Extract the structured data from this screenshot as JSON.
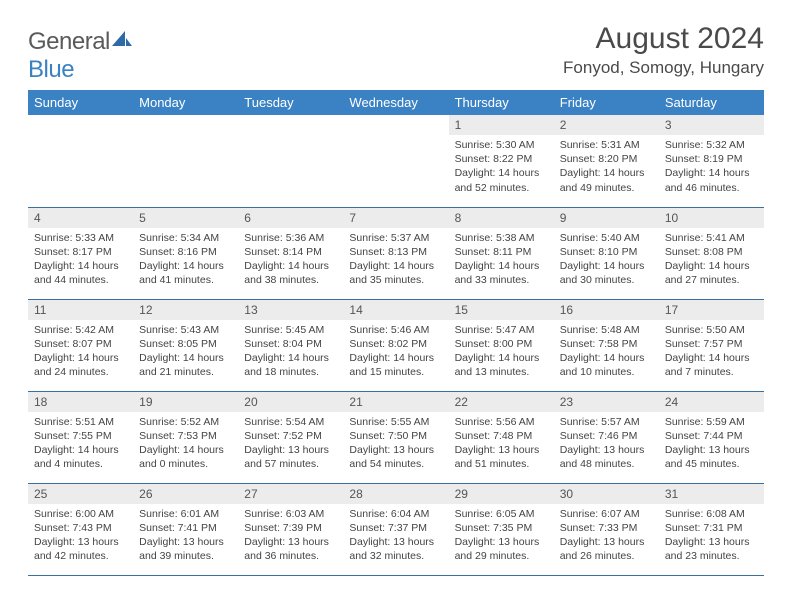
{
  "brand": {
    "part1": "General",
    "part2": "Blue"
  },
  "title": "August 2024",
  "location": "Fonyod, Somogy, Hungary",
  "colors": {
    "header_bg": "#3b82c4",
    "header_fg": "#ffffff",
    "daynum_bg": "#ececec",
    "row_border": "#3b6fa0",
    "text": "#444444",
    "title_color": "#4a4a4a"
  },
  "typography": {
    "month_title_size": 30,
    "location_size": 17,
    "weekday_size": 13,
    "daynum_size": 12,
    "info_size": 10.5
  },
  "weekdays": [
    "Sunday",
    "Monday",
    "Tuesday",
    "Wednesday",
    "Thursday",
    "Friday",
    "Saturday"
  ],
  "weeks": [
    [
      {
        "n": "",
        "sr": "",
        "ss": "",
        "dl": "",
        "empty": true
      },
      {
        "n": "",
        "sr": "",
        "ss": "",
        "dl": "",
        "empty": true
      },
      {
        "n": "",
        "sr": "",
        "ss": "",
        "dl": "",
        "empty": true
      },
      {
        "n": "",
        "sr": "",
        "ss": "",
        "dl": "",
        "empty": true
      },
      {
        "n": "1",
        "sr": "Sunrise: 5:30 AM",
        "ss": "Sunset: 8:22 PM",
        "dl": "Daylight: 14 hours and 52 minutes."
      },
      {
        "n": "2",
        "sr": "Sunrise: 5:31 AM",
        "ss": "Sunset: 8:20 PM",
        "dl": "Daylight: 14 hours and 49 minutes."
      },
      {
        "n": "3",
        "sr": "Sunrise: 5:32 AM",
        "ss": "Sunset: 8:19 PM",
        "dl": "Daylight: 14 hours and 46 minutes."
      }
    ],
    [
      {
        "n": "4",
        "sr": "Sunrise: 5:33 AM",
        "ss": "Sunset: 8:17 PM",
        "dl": "Daylight: 14 hours and 44 minutes."
      },
      {
        "n": "5",
        "sr": "Sunrise: 5:34 AM",
        "ss": "Sunset: 8:16 PM",
        "dl": "Daylight: 14 hours and 41 minutes."
      },
      {
        "n": "6",
        "sr": "Sunrise: 5:36 AM",
        "ss": "Sunset: 8:14 PM",
        "dl": "Daylight: 14 hours and 38 minutes."
      },
      {
        "n": "7",
        "sr": "Sunrise: 5:37 AM",
        "ss": "Sunset: 8:13 PM",
        "dl": "Daylight: 14 hours and 35 minutes."
      },
      {
        "n": "8",
        "sr": "Sunrise: 5:38 AM",
        "ss": "Sunset: 8:11 PM",
        "dl": "Daylight: 14 hours and 33 minutes."
      },
      {
        "n": "9",
        "sr": "Sunrise: 5:40 AM",
        "ss": "Sunset: 8:10 PM",
        "dl": "Daylight: 14 hours and 30 minutes."
      },
      {
        "n": "10",
        "sr": "Sunrise: 5:41 AM",
        "ss": "Sunset: 8:08 PM",
        "dl": "Daylight: 14 hours and 27 minutes."
      }
    ],
    [
      {
        "n": "11",
        "sr": "Sunrise: 5:42 AM",
        "ss": "Sunset: 8:07 PM",
        "dl": "Daylight: 14 hours and 24 minutes."
      },
      {
        "n": "12",
        "sr": "Sunrise: 5:43 AM",
        "ss": "Sunset: 8:05 PM",
        "dl": "Daylight: 14 hours and 21 minutes."
      },
      {
        "n": "13",
        "sr": "Sunrise: 5:45 AM",
        "ss": "Sunset: 8:04 PM",
        "dl": "Daylight: 14 hours and 18 minutes."
      },
      {
        "n": "14",
        "sr": "Sunrise: 5:46 AM",
        "ss": "Sunset: 8:02 PM",
        "dl": "Daylight: 14 hours and 15 minutes."
      },
      {
        "n": "15",
        "sr": "Sunrise: 5:47 AM",
        "ss": "Sunset: 8:00 PM",
        "dl": "Daylight: 14 hours and 13 minutes."
      },
      {
        "n": "16",
        "sr": "Sunrise: 5:48 AM",
        "ss": "Sunset: 7:58 PM",
        "dl": "Daylight: 14 hours and 10 minutes."
      },
      {
        "n": "17",
        "sr": "Sunrise: 5:50 AM",
        "ss": "Sunset: 7:57 PM",
        "dl": "Daylight: 14 hours and 7 minutes."
      }
    ],
    [
      {
        "n": "18",
        "sr": "Sunrise: 5:51 AM",
        "ss": "Sunset: 7:55 PM",
        "dl": "Daylight: 14 hours and 4 minutes."
      },
      {
        "n": "19",
        "sr": "Sunrise: 5:52 AM",
        "ss": "Sunset: 7:53 PM",
        "dl": "Daylight: 14 hours and 0 minutes."
      },
      {
        "n": "20",
        "sr": "Sunrise: 5:54 AM",
        "ss": "Sunset: 7:52 PM",
        "dl": "Daylight: 13 hours and 57 minutes."
      },
      {
        "n": "21",
        "sr": "Sunrise: 5:55 AM",
        "ss": "Sunset: 7:50 PM",
        "dl": "Daylight: 13 hours and 54 minutes."
      },
      {
        "n": "22",
        "sr": "Sunrise: 5:56 AM",
        "ss": "Sunset: 7:48 PM",
        "dl": "Daylight: 13 hours and 51 minutes."
      },
      {
        "n": "23",
        "sr": "Sunrise: 5:57 AM",
        "ss": "Sunset: 7:46 PM",
        "dl": "Daylight: 13 hours and 48 minutes."
      },
      {
        "n": "24",
        "sr": "Sunrise: 5:59 AM",
        "ss": "Sunset: 7:44 PM",
        "dl": "Daylight: 13 hours and 45 minutes."
      }
    ],
    [
      {
        "n": "25",
        "sr": "Sunrise: 6:00 AM",
        "ss": "Sunset: 7:43 PM",
        "dl": "Daylight: 13 hours and 42 minutes."
      },
      {
        "n": "26",
        "sr": "Sunrise: 6:01 AM",
        "ss": "Sunset: 7:41 PM",
        "dl": "Daylight: 13 hours and 39 minutes."
      },
      {
        "n": "27",
        "sr": "Sunrise: 6:03 AM",
        "ss": "Sunset: 7:39 PM",
        "dl": "Daylight: 13 hours and 36 minutes."
      },
      {
        "n": "28",
        "sr": "Sunrise: 6:04 AM",
        "ss": "Sunset: 7:37 PM",
        "dl": "Daylight: 13 hours and 32 minutes."
      },
      {
        "n": "29",
        "sr": "Sunrise: 6:05 AM",
        "ss": "Sunset: 7:35 PM",
        "dl": "Daylight: 13 hours and 29 minutes."
      },
      {
        "n": "30",
        "sr": "Sunrise: 6:07 AM",
        "ss": "Sunset: 7:33 PM",
        "dl": "Daylight: 13 hours and 26 minutes."
      },
      {
        "n": "31",
        "sr": "Sunrise: 6:08 AM",
        "ss": "Sunset: 7:31 PM",
        "dl": "Daylight: 13 hours and 23 minutes."
      }
    ]
  ]
}
